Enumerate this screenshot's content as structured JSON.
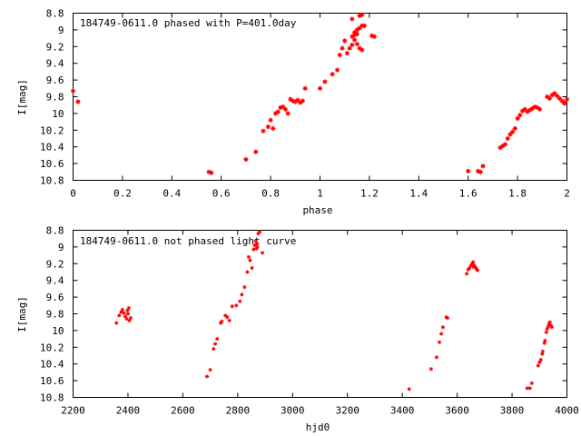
{
  "chart_data": [
    {
      "type": "scatter",
      "title": "184749-0611.0 phased with P=401.0day",
      "xlabel": "phase",
      "ylabel": "I[mag]",
      "xlim": [
        0,
        2
      ],
      "ylim": [
        10.8,
        8.8
      ],
      "y_inverted": true,
      "x_ticks": [
        "0",
        "0.2",
        "0.4",
        "0.6",
        "0.8",
        "1",
        "1.2",
        "1.4",
        "1.6",
        "1.8",
        "2"
      ],
      "y_ticks": [
        "8.8",
        "9",
        "9.2",
        "9.4",
        "9.6",
        "9.8",
        "10",
        "10.2",
        "10.4",
        "10.6",
        "10.8"
      ],
      "marker_color": "#ff0000",
      "grid": false,
      "series": [
        {
          "points": [
            [
              0.0,
              9.73
            ],
            [
              0.02,
              9.86
            ],
            [
              0.55,
              10.7
            ],
            [
              0.56,
              10.71
            ],
            [
              0.7,
              10.55
            ],
            [
              0.74,
              10.46
            ],
            [
              0.77,
              10.21
            ],
            [
              0.79,
              10.16
            ],
            [
              0.8,
              10.08
            ],
            [
              0.81,
              10.18
            ],
            [
              0.82,
              10.0
            ],
            [
              0.83,
              9.98
            ],
            [
              0.84,
              9.93
            ],
            [
              0.85,
              9.92
            ],
            [
              0.86,
              9.95
            ],
            [
              0.87,
              10.0
            ],
            [
              0.88,
              9.83
            ],
            [
              0.89,
              9.85
            ],
            [
              0.9,
              9.86
            ],
            [
              0.91,
              9.84
            ],
            [
              0.92,
              9.87
            ],
            [
              0.93,
              9.85
            ],
            [
              0.94,
              9.7
            ],
            [
              1.0,
              9.7
            ],
            [
              1.02,
              9.62
            ],
            [
              1.05,
              9.53
            ],
            [
              1.07,
              9.48
            ],
            [
              1.08,
              9.3
            ],
            [
              1.09,
              9.22
            ],
            [
              1.1,
              9.13
            ],
            [
              1.11,
              9.28
            ],
            [
              1.12,
              9.22
            ],
            [
              1.13,
              9.18
            ],
            [
              1.14,
              9.12
            ],
            [
              1.15,
              9.17
            ],
            [
              1.16,
              9.22
            ],
            [
              1.17,
              9.24
            ],
            [
              1.13,
              9.08
            ],
            [
              1.14,
              9.03
            ],
            [
              1.15,
              9.0
            ],
            [
              1.16,
              8.98
            ],
            [
              1.17,
              8.95
            ],
            [
              1.18,
              8.95
            ],
            [
              1.16,
              8.83
            ],
            [
              1.17,
              8.82
            ],
            [
              1.13,
              8.87
            ],
            [
              1.21,
              9.07
            ],
            [
              1.22,
              9.08
            ],
            [
              1.14,
              9.06
            ],
            [
              1.15,
              9.05
            ],
            [
              1.6,
              10.69
            ],
            [
              1.64,
              10.69
            ],
            [
              1.65,
              10.7
            ],
            [
              1.66,
              10.63
            ],
            [
              1.73,
              10.41
            ],
            [
              1.74,
              10.39
            ],
            [
              1.75,
              10.37
            ],
            [
              1.76,
              10.3
            ],
            [
              1.77,
              10.25
            ],
            [
              1.78,
              10.22
            ],
            [
              1.79,
              10.18
            ],
            [
              1.8,
              10.06
            ],
            [
              1.81,
              10.02
            ],
            [
              1.82,
              9.97
            ],
            [
              1.83,
              9.95
            ],
            [
              1.84,
              9.98
            ],
            [
              1.85,
              9.96
            ],
            [
              1.86,
              9.94
            ],
            [
              1.87,
              9.92
            ],
            [
              1.88,
              9.93
            ],
            [
              1.89,
              9.95
            ],
            [
              1.92,
              9.8
            ],
            [
              1.93,
              9.82
            ],
            [
              1.94,
              9.78
            ],
            [
              1.95,
              9.76
            ],
            [
              1.96,
              9.79
            ],
            [
              1.97,
              9.82
            ],
            [
              1.98,
              9.85
            ],
            [
              1.99,
              9.88
            ],
            [
              2.0,
              9.83
            ],
            [
              1.99,
              9.87
            ]
          ]
        }
      ]
    },
    {
      "type": "scatter",
      "title": "184749-0611.0 not phased light curve",
      "xlabel": "hjd0",
      "ylabel": "I[mag]",
      "xlim": [
        2200,
        4000
      ],
      "ylim": [
        10.8,
        8.8
      ],
      "y_inverted": true,
      "x_ticks": [
        "2200",
        "2400",
        "2600",
        "2800",
        "3000",
        "3200",
        "3400",
        "3600",
        "3800",
        "4000"
      ],
      "y_ticks": [
        "8.8",
        "9",
        "9.2",
        "9.4",
        "9.6",
        "9.8",
        "10",
        "10.2",
        "10.4",
        "10.6",
        "10.8"
      ],
      "marker_color": "#ff0000",
      "grid": false,
      "series": [
        {
          "points": [
            [
              2358,
              9.91
            ],
            [
              2368,
              9.82
            ],
            [
              2375,
              9.78
            ],
            [
              2380,
              9.75
            ],
            [
              2385,
              9.79
            ],
            [
              2390,
              9.83
            ],
            [
              2395,
              9.86
            ],
            [
              2400,
              9.8
            ],
            [
              2405,
              9.88
            ],
            [
              2410,
              9.85
            ],
            [
              2398,
              9.76
            ],
            [
              2403,
              9.73
            ],
            [
              2688,
              10.55
            ],
            [
              2700,
              10.47
            ],
            [
              2712,
              10.22
            ],
            [
              2718,
              10.16
            ],
            [
              2725,
              10.1
            ],
            [
              2738,
              9.91
            ],
            [
              2742,
              9.89
            ],
            [
              2755,
              9.82
            ],
            [
              2762,
              9.84
            ],
            [
              2770,
              9.88
            ],
            [
              2780,
              9.71
            ],
            [
              2795,
              9.7
            ],
            [
              2808,
              9.65
            ],
            [
              2815,
              9.57
            ],
            [
              2825,
              9.48
            ],
            [
              2835,
              9.3
            ],
            [
              2840,
              9.12
            ],
            [
              2845,
              9.16
            ],
            [
              2852,
              9.25
            ],
            [
              2858,
              9.03
            ],
            [
              2862,
              8.98
            ],
            [
              2866,
              8.93
            ],
            [
              2870,
              8.96
            ],
            [
              2872,
              9.0
            ],
            [
              2875,
              8.84
            ],
            [
              2880,
              8.82
            ],
            [
              2868,
              9.02
            ],
            [
              2890,
              9.07
            ],
            [
              3425,
              10.7
            ],
            [
              3505,
              10.46
            ],
            [
              3525,
              10.32
            ],
            [
              3535,
              10.14
            ],
            [
              3542,
              10.04
            ],
            [
              3548,
              9.96
            ],
            [
              3560,
              9.84
            ],
            [
              3565,
              9.85
            ],
            [
              3635,
              9.32
            ],
            [
              3640,
              9.27
            ],
            [
              3645,
              9.25
            ],
            [
              3650,
              9.22
            ],
            [
              3655,
              9.2
            ],
            [
              3658,
              9.18
            ],
            [
              3662,
              9.22
            ],
            [
              3666,
              9.24
            ],
            [
              3670,
              9.26
            ],
            [
              3674,
              9.28
            ],
            [
              3660,
              9.24
            ],
            [
              3855,
              10.69
            ],
            [
              3865,
              10.69
            ],
            [
              3872,
              10.63
            ],
            [
              3895,
              10.42
            ],
            [
              3900,
              10.38
            ],
            [
              3905,
              10.35
            ],
            [
              3910,
              10.28
            ],
            [
              3912,
              10.25
            ],
            [
              3918,
              10.15
            ],
            [
              3920,
              10.12
            ],
            [
              3925,
              10.02
            ],
            [
              3928,
              9.98
            ],
            [
              3932,
              9.95
            ],
            [
              3935,
              9.92
            ],
            [
              3938,
              9.9
            ],
            [
              3942,
              9.94
            ],
            [
              3945,
              9.96
            ]
          ]
        }
      ]
    }
  ]
}
